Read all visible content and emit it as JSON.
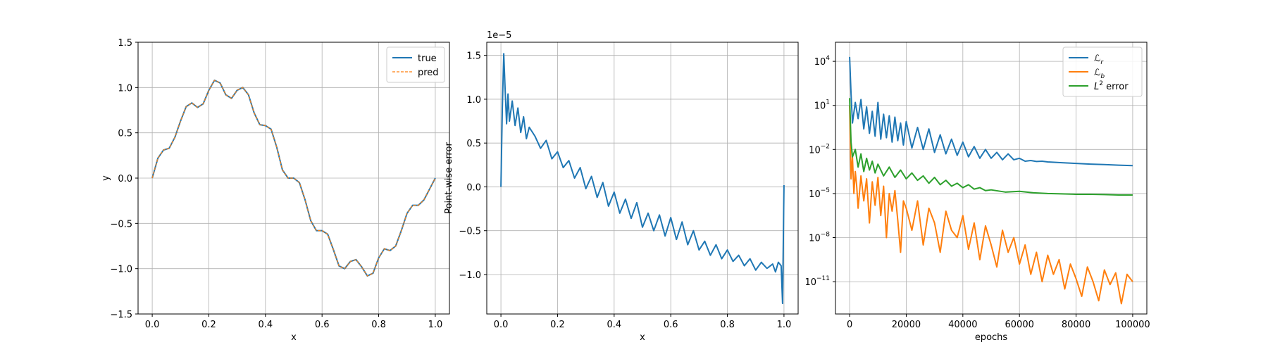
{
  "colors": {
    "blue": "#1f77b4",
    "orange": "#ff7f0e",
    "green": "#2ca02c",
    "grid": "#b0b0b0"
  },
  "chart_data": [
    {
      "type": "line",
      "xlabel": "x",
      "ylabel": "y",
      "xlim": [
        -0.05,
        1.05
      ],
      "ylim": [
        -1.5,
        1.5
      ],
      "xticks": [
        0.0,
        0.2,
        0.4,
        0.6,
        0.8,
        1.0
      ],
      "xtick_labels": [
        "0.0",
        "0.2",
        "0.4",
        "0.6",
        "0.8",
        "1.0"
      ],
      "yticks": [
        -1.5,
        -1.0,
        -0.5,
        0.0,
        0.5,
        1.0,
        1.5
      ],
      "ytick_labels": [
        "−1.5",
        "−1.0",
        "−0.5",
        "0.0",
        "0.5",
        "1.0",
        "1.5"
      ],
      "grid": true,
      "legend_position": "top-right",
      "series": [
        {
          "name": "true",
          "color": "#1f77b4",
          "style": "solid",
          "x": [
            0.0,
            0.02,
            0.04,
            0.06,
            0.08,
            0.1,
            0.12,
            0.14,
            0.16,
            0.18,
            0.2,
            0.22,
            0.24,
            0.26,
            0.28,
            0.3,
            0.32,
            0.34,
            0.36,
            0.38,
            0.4,
            0.42,
            0.44,
            0.46,
            0.48,
            0.5,
            0.52,
            0.54,
            0.56,
            0.58,
            0.6,
            0.62,
            0.64,
            0.66,
            0.68,
            0.7,
            0.72,
            0.74,
            0.76,
            0.78,
            0.8,
            0.82,
            0.84,
            0.86,
            0.88,
            0.9,
            0.92,
            0.94,
            0.96,
            0.98,
            1.0
          ],
          "y": [
            0.0,
            0.22,
            0.31,
            0.33,
            0.45,
            0.63,
            0.79,
            0.83,
            0.78,
            0.82,
            0.97,
            1.08,
            1.05,
            0.92,
            0.88,
            0.97,
            1.0,
            0.92,
            0.72,
            0.59,
            0.58,
            0.54,
            0.34,
            0.09,
            0.0,
            0.0,
            -0.05,
            -0.24,
            -0.47,
            -0.58,
            -0.58,
            -0.62,
            -0.79,
            -0.97,
            -1.0,
            -0.92,
            -0.9,
            -0.98,
            -1.08,
            -1.05,
            -0.88,
            -0.78,
            -0.8,
            -0.75,
            -0.58,
            -0.39,
            -0.3,
            -0.3,
            -0.24,
            -0.12,
            0.0
          ]
        },
        {
          "name": "pred",
          "color": "#ff7f0e",
          "style": "dashed",
          "x": [
            0.0,
            0.02,
            0.04,
            0.06,
            0.08,
            0.1,
            0.12,
            0.14,
            0.16,
            0.18,
            0.2,
            0.22,
            0.24,
            0.26,
            0.28,
            0.3,
            0.32,
            0.34,
            0.36,
            0.38,
            0.4,
            0.42,
            0.44,
            0.46,
            0.48,
            0.5,
            0.52,
            0.54,
            0.56,
            0.58,
            0.6,
            0.62,
            0.64,
            0.66,
            0.68,
            0.7,
            0.72,
            0.74,
            0.76,
            0.78,
            0.8,
            0.82,
            0.84,
            0.86,
            0.88,
            0.9,
            0.92,
            0.94,
            0.96,
            0.98,
            1.0
          ],
          "y": [
            0.0,
            0.22,
            0.31,
            0.33,
            0.45,
            0.63,
            0.79,
            0.83,
            0.78,
            0.82,
            0.97,
            1.08,
            1.05,
            0.92,
            0.88,
            0.97,
            1.0,
            0.92,
            0.72,
            0.59,
            0.58,
            0.54,
            0.34,
            0.09,
            0.0,
            0.0,
            -0.05,
            -0.24,
            -0.47,
            -0.58,
            -0.58,
            -0.62,
            -0.79,
            -0.97,
            -1.0,
            -0.92,
            -0.9,
            -0.98,
            -1.08,
            -1.05,
            -0.88,
            -0.78,
            -0.8,
            -0.75,
            -0.58,
            -0.39,
            -0.3,
            -0.3,
            -0.24,
            -0.12,
            0.0
          ]
        }
      ]
    },
    {
      "type": "line",
      "xlabel": "x",
      "ylabel": "Point-wise error",
      "offset_text": "1e−5",
      "xlim": [
        -0.05,
        1.05
      ],
      "ylim": [
        -1.45,
        1.65
      ],
      "xticks": [
        0.0,
        0.2,
        0.4,
        0.6,
        0.8,
        1.0
      ],
      "xtick_labels": [
        "0.0",
        "0.2",
        "0.4",
        "0.6",
        "0.8",
        "1.0"
      ],
      "yticks": [
        -1.0,
        -0.5,
        0.0,
        0.5,
        1.0,
        1.5
      ],
      "ytick_labels": [
        "−1.0",
        "−0.5",
        "0.0",
        "0.5",
        "1.0",
        "1.5"
      ],
      "grid": true,
      "series": [
        {
          "name": "",
          "color": "#1f77b4",
          "x": [
            0.0,
            0.005,
            0.01,
            0.015,
            0.02,
            0.025,
            0.03,
            0.04,
            0.05,
            0.06,
            0.07,
            0.08,
            0.09,
            0.1,
            0.12,
            0.14,
            0.16,
            0.18,
            0.2,
            0.22,
            0.24,
            0.26,
            0.28,
            0.3,
            0.32,
            0.34,
            0.36,
            0.38,
            0.4,
            0.42,
            0.44,
            0.46,
            0.48,
            0.5,
            0.52,
            0.54,
            0.56,
            0.58,
            0.6,
            0.62,
            0.64,
            0.66,
            0.68,
            0.7,
            0.72,
            0.74,
            0.76,
            0.78,
            0.8,
            0.82,
            0.84,
            0.86,
            0.88,
            0.9,
            0.92,
            0.94,
            0.96,
            0.97,
            0.98,
            0.99,
            0.995,
            1.0
          ],
          "y": [
            0.0,
            0.9,
            1.52,
            1.1,
            0.72,
            1.06,
            0.75,
            0.98,
            0.7,
            0.9,
            0.62,
            0.8,
            0.55,
            0.68,
            0.58,
            0.44,
            0.53,
            0.32,
            0.4,
            0.22,
            0.3,
            0.1,
            0.22,
            -0.02,
            0.12,
            -0.12,
            0.05,
            -0.22,
            -0.06,
            -0.3,
            -0.14,
            -0.36,
            -0.18,
            -0.46,
            -0.3,
            -0.5,
            -0.32,
            -0.56,
            -0.35,
            -0.6,
            -0.4,
            -0.66,
            -0.5,
            -0.72,
            -0.62,
            -0.78,
            -0.66,
            -0.82,
            -0.72,
            -0.85,
            -0.78,
            -0.9,
            -0.82,
            -0.95,
            -0.86,
            -0.93,
            -0.88,
            -0.97,
            -0.86,
            -0.9,
            -1.33,
            0.02
          ]
        }
      ]
    },
    {
      "type": "line",
      "xlabel": "epochs",
      "ylabel": "",
      "yscale": "log",
      "xlim": [
        -5000,
        105000
      ],
      "ylim": [
        -13.2,
        5.3
      ],
      "xticks": [
        0,
        20000,
        40000,
        60000,
        80000,
        100000
      ],
      "xtick_labels": [
        "0",
        "20000",
        "40000",
        "60000",
        "80000",
        "100000"
      ],
      "yticks": [
        -11,
        -8,
        -5,
        -2,
        1,
        4
      ],
      "ytick_labels": [
        "10",
        "10",
        "10",
        "10",
        "10",
        "10"
      ],
      "ytick_exponents": [
        "−11",
        "−8",
        "−5",
        "−2",
        "1",
        "4"
      ],
      "grid": true,
      "legend_position": "top-right",
      "series": [
        {
          "name": "ℒ",
          "name_sub": "r",
          "color": "#1f77b4",
          "x": [
            0,
            500,
            1000,
            2000,
            3000,
            4000,
            5000,
            6000,
            7000,
            8000,
            9000,
            10000,
            11000,
            12000,
            13000,
            14000,
            15000,
            16000,
            17000,
            18000,
            19000,
            20000,
            22000,
            24000,
            26000,
            28000,
            30000,
            32000,
            34000,
            36000,
            38000,
            40000,
            42000,
            44000,
            46000,
            48000,
            50000,
            52000,
            54000,
            56000,
            58000,
            60000,
            62000,
            64000,
            66000,
            68000,
            70000,
            75000,
            80000,
            85000,
            90000,
            95000,
            100000
          ],
          "y": [
            4.3,
            1.8,
            -0.2,
            1.2,
            0.1,
            1.4,
            -0.6,
            0.9,
            -0.9,
            0.6,
            -1.1,
            1.2,
            -1.3,
            0.4,
            -1.2,
            0.3,
            -1.5,
            0.2,
            -1.4,
            -0.2,
            -1.7,
            -0.1,
            -1.9,
            -0.5,
            -2.0,
            -0.6,
            -2.2,
            -1.0,
            -2.3,
            -1.3,
            -2.4,
            -1.5,
            -2.5,
            -1.8,
            -2.6,
            -2.0,
            -2.6,
            -2.2,
            -2.7,
            -2.3,
            -2.7,
            -2.6,
            -2.8,
            -2.75,
            -2.82,
            -2.8,
            -2.85,
            -2.9,
            -2.95,
            -3.0,
            -3.03,
            -3.07,
            -3.1
          ]
        },
        {
          "name": "ℒ",
          "name_sub": "b",
          "color": "#ff7f0e",
          "x": [
            0,
            500,
            1000,
            1500,
            2000,
            2500,
            3000,
            4000,
            5000,
            6000,
            7000,
            8000,
            9000,
            10000,
            11000,
            12000,
            13000,
            14000,
            15000,
            16000,
            17000,
            18000,
            19000,
            20000,
            22000,
            24000,
            26000,
            28000,
            30000,
            32000,
            34000,
            36000,
            38000,
            40000,
            42000,
            44000,
            46000,
            48000,
            50000,
            52000,
            54000,
            56000,
            58000,
            60000,
            62000,
            64000,
            66000,
            68000,
            70000,
            72000,
            74000,
            76000,
            78000,
            80000,
            82000,
            84000,
            86000,
            88000,
            90000,
            92000,
            94000,
            96000,
            98000,
            100000
          ],
          "y": [
            1.0,
            -4.0,
            -2.5,
            -5.0,
            -3.5,
            -4.5,
            -6.0,
            -3.8,
            -5.5,
            -4.0,
            -7.0,
            -4.2,
            -5.8,
            -3.9,
            -6.5,
            -4.5,
            -8.0,
            -5.0,
            -6.2,
            -4.8,
            -6.8,
            -9.0,
            -5.5,
            -6.0,
            -7.5,
            -5.5,
            -8.5,
            -6.0,
            -7.0,
            -9.0,
            -6.2,
            -7.5,
            -8.0,
            -6.5,
            -8.8,
            -7.0,
            -9.5,
            -7.2,
            -8.5,
            -10.0,
            -7.5,
            -9.0,
            -8.0,
            -9.8,
            -8.5,
            -10.5,
            -9.0,
            -11.0,
            -9.2,
            -10.5,
            -9.5,
            -11.5,
            -9.8,
            -10.8,
            -12.0,
            -10.0,
            -11.0,
            -12.3,
            -10.2,
            -11.2,
            -10.4,
            -12.5,
            -10.5,
            -11.0
          ]
        },
        {
          "name": "L",
          "name_sup": "2",
          "name_tail": " error",
          "color": "#2ca02c",
          "x": [
            0,
            500,
            1000,
            2000,
            3000,
            4000,
            5000,
            6000,
            7000,
            8000,
            9000,
            10000,
            12000,
            14000,
            16000,
            18000,
            20000,
            22000,
            24000,
            26000,
            28000,
            30000,
            32000,
            34000,
            36000,
            38000,
            40000,
            42000,
            44000,
            46000,
            48000,
            50000,
            55000,
            60000,
            65000,
            70000,
            75000,
            80000,
            85000,
            90000,
            95000,
            100000
          ],
          "y": [
            1.5,
            -1.5,
            -2.5,
            -2.0,
            -3.2,
            -2.3,
            -3.5,
            -2.6,
            -3.4,
            -2.8,
            -3.6,
            -3.0,
            -3.8,
            -3.2,
            -3.9,
            -3.4,
            -4.0,
            -3.6,
            -4.1,
            -3.8,
            -4.3,
            -3.9,
            -4.4,
            -4.1,
            -4.5,
            -4.3,
            -4.6,
            -4.4,
            -4.7,
            -4.6,
            -4.8,
            -4.75,
            -4.9,
            -4.85,
            -4.95,
            -5.0,
            -5.02,
            -5.05,
            -5.05,
            -5.07,
            -5.1,
            -5.1
          ]
        }
      ]
    }
  ]
}
